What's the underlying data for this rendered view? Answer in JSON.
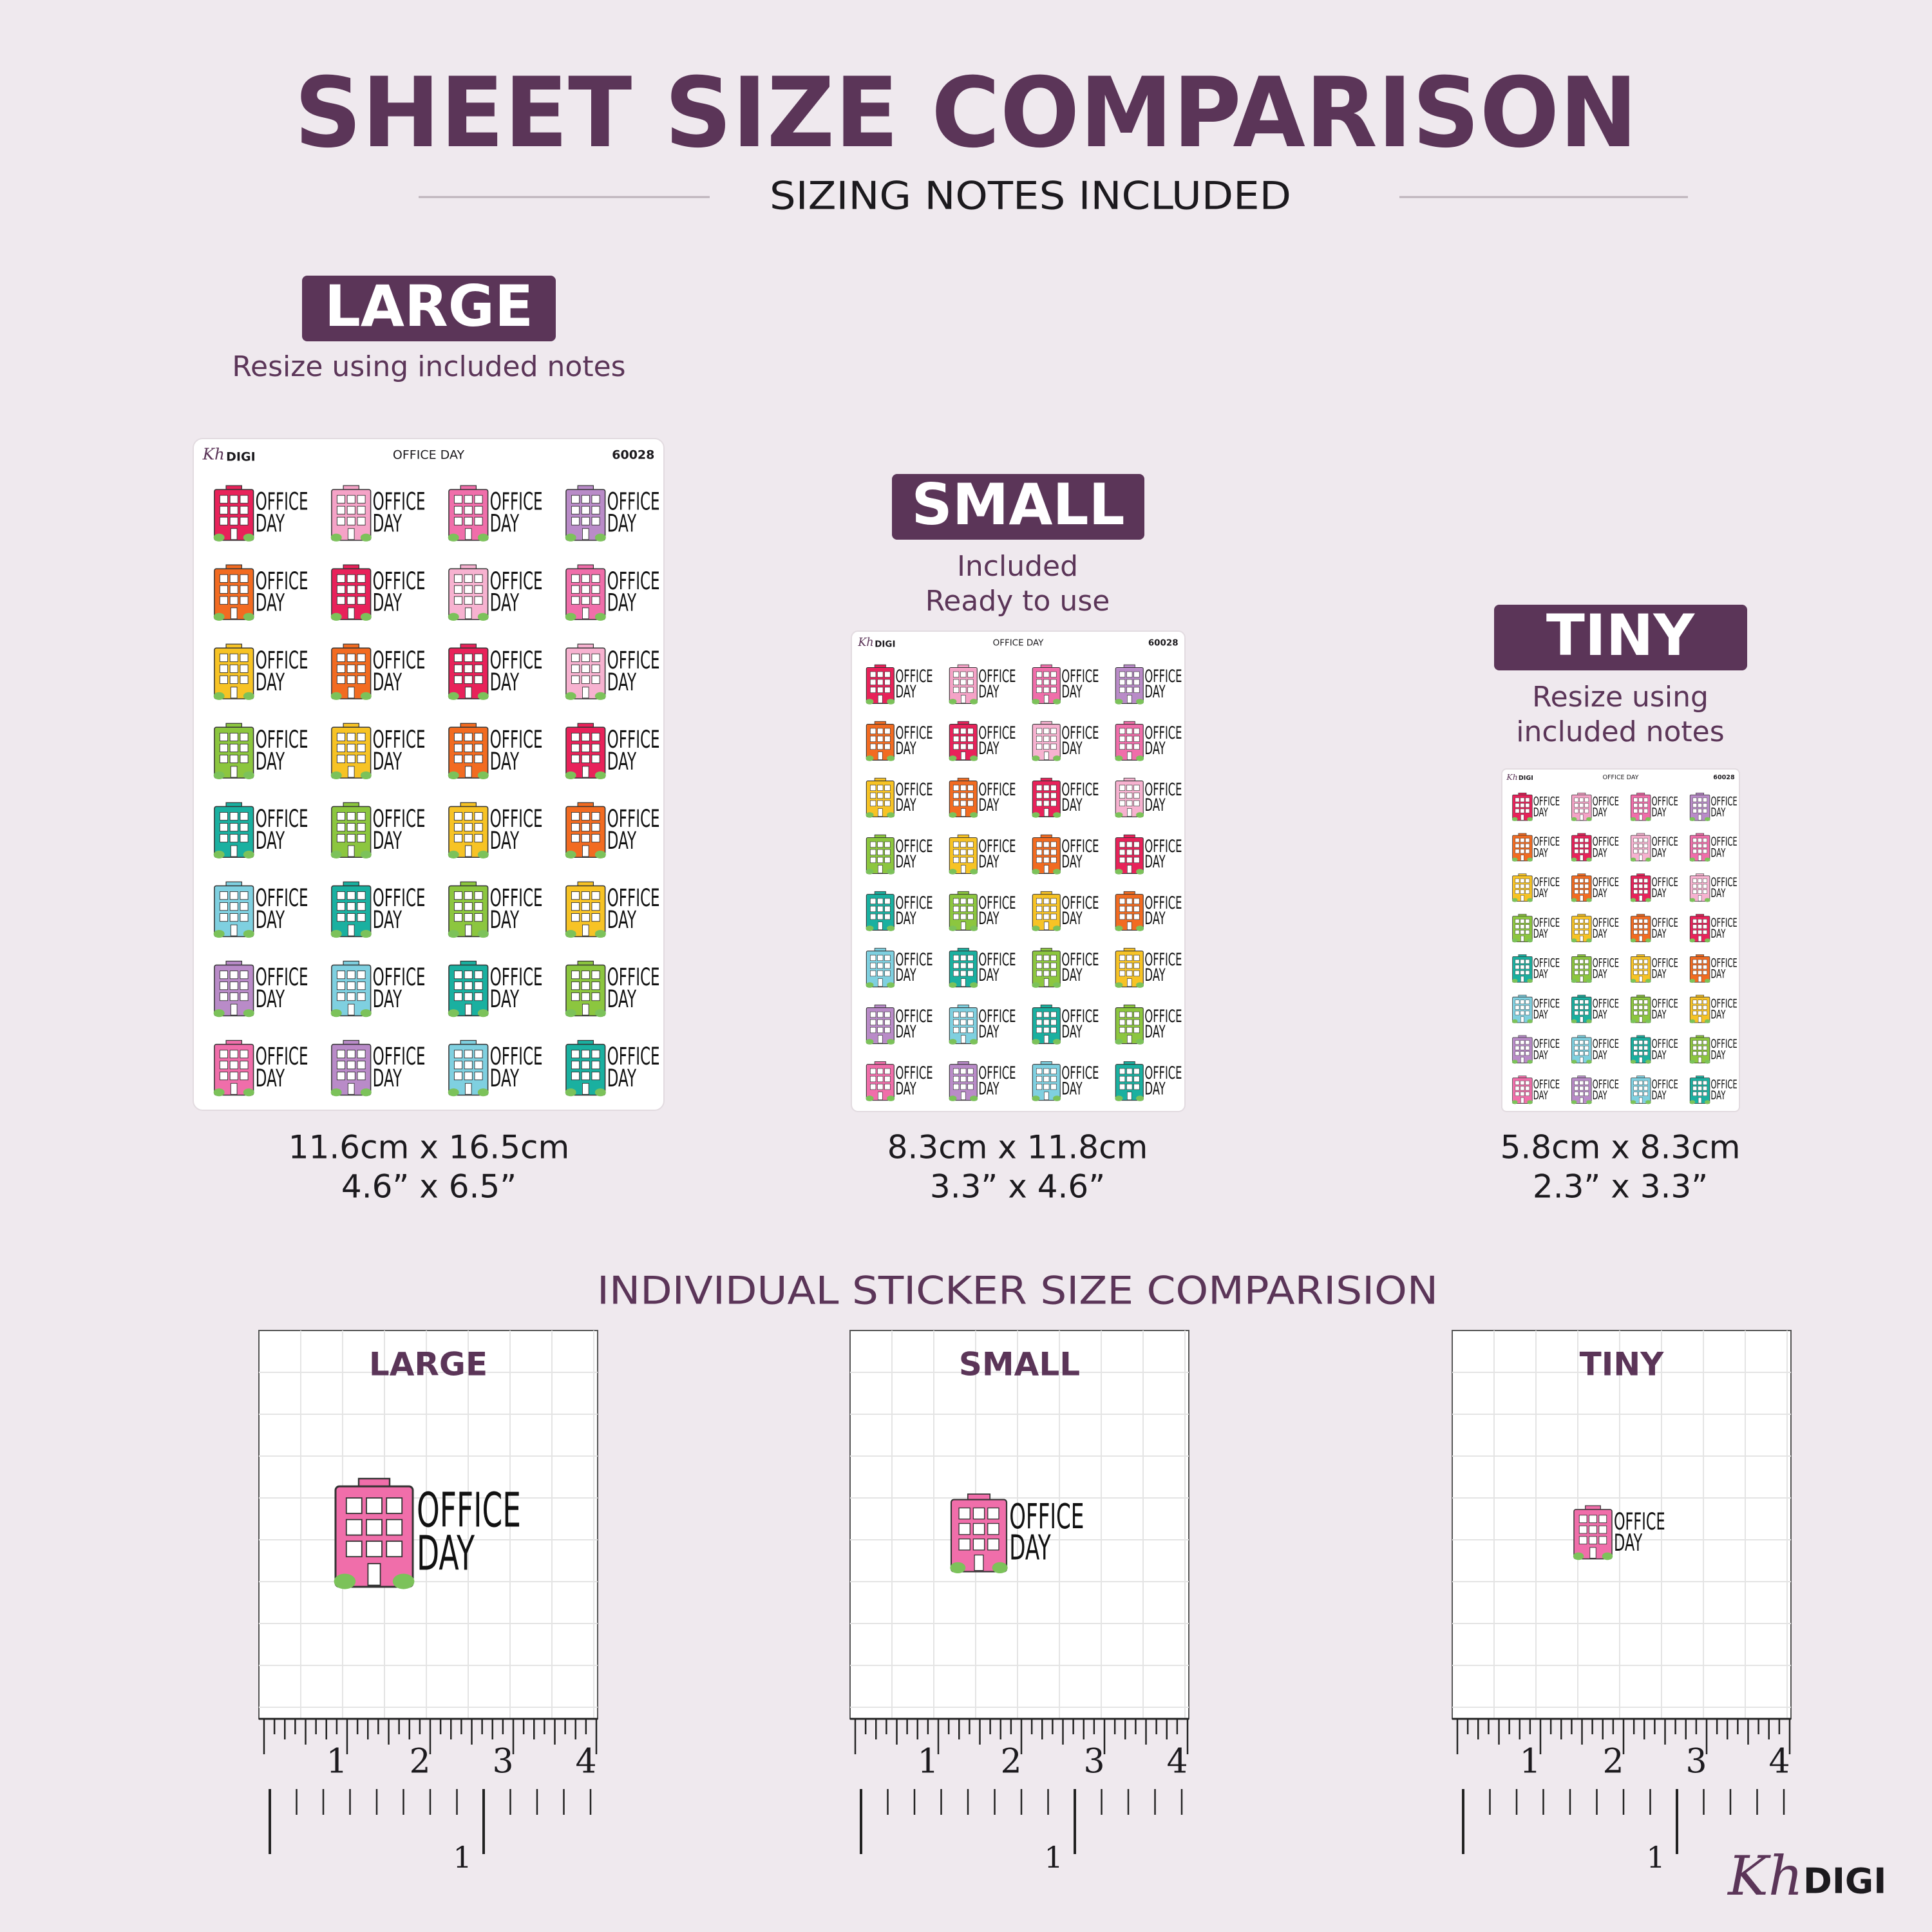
{
  "header": {
    "title": "SHEET SIZE COMPARISON",
    "subtitle": "SIZING NOTES INCLUDED"
  },
  "sheets": [
    {
      "label": "LARGE",
      "caption": [
        "Resize using included notes"
      ],
      "size_cm": "11.6cm x 16.5cm",
      "size_in": "4.6” x 6.5”"
    },
    {
      "label": "SMALL",
      "caption": [
        "Included",
        "Ready to use"
      ],
      "size_cm": "8.3cm x 11.8cm",
      "size_in": "3.3” x 4.6”"
    },
    {
      "label": "TINY",
      "caption": [
        "Resize using",
        "included notes"
      ],
      "size_cm": "5.8cm x 8.3cm",
      "size_in": "2.3” x 3.3”"
    }
  ],
  "sheet_print": {
    "brand": "Kh",
    "brand_suffix": "DIGI",
    "title": "OFFICE DAY",
    "code": "60028",
    "sticker_lines": [
      "OFFICE",
      "DAY"
    ]
  },
  "section_title": "INDIVIDUAL STICKER SIZE COMPARISION",
  "panels": [
    {
      "label": "LARGE"
    },
    {
      "label": "SMALL"
    },
    {
      "label": "TINY"
    }
  ],
  "ruler": {
    "inch_labels": [
      "1",
      "2",
      "3",
      "4"
    ],
    "lower_label": "1"
  },
  "footer_logo": {
    "brand": "Kh",
    "suffix": "DIGI"
  }
}
